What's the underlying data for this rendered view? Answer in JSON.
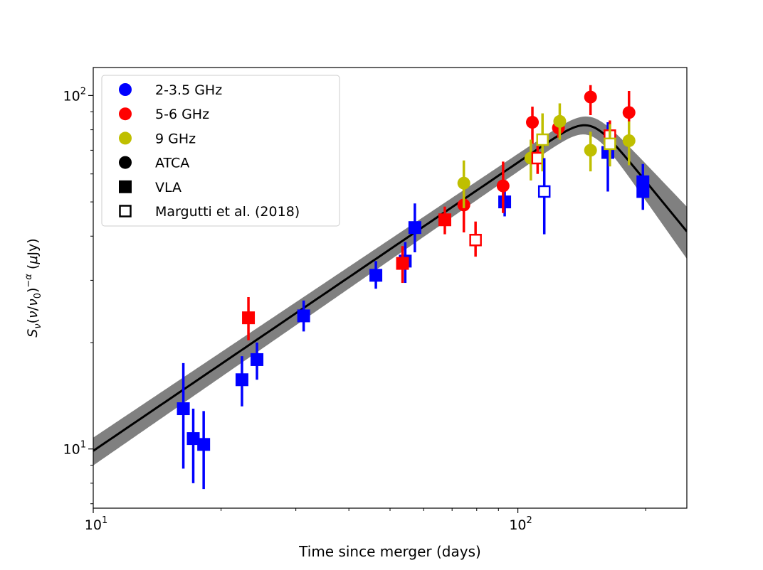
{
  "chart_data": {
    "type": "scatter",
    "xlabel": "Time since merger (days)",
    "ylabel": "S_ν(ν/ν₀)^−α (μJy)",
    "xscale": "log",
    "yscale": "log",
    "xlim": [
      10,
      250
    ],
    "ylim": [
      6.8,
      120
    ],
    "x_ticks": [
      {
        "value": 10,
        "base": "10",
        "exp": "1"
      },
      {
        "value": 100,
        "base": "10",
        "exp": "2"
      }
    ],
    "y_ticks": [
      {
        "value": 10,
        "base": "10",
        "exp": "1"
      },
      {
        "value": 100,
        "base": "10",
        "exp": "2"
      }
    ],
    "grid": false,
    "legend_position": "top-left",
    "colors": {
      "blue": "#0000ff",
      "red": "#ff0000",
      "olive": "#bfbf00",
      "model": "#000000",
      "band": "#808080"
    },
    "legend": [
      {
        "label": "2-3.5 GHz",
        "marker": "circle",
        "color": "#0000ff",
        "filled": true
      },
      {
        "label": "5-6 GHz",
        "marker": "circle",
        "color": "#ff0000",
        "filled": true
      },
      {
        "label": "9 GHz",
        "marker": "circle",
        "color": "#bfbf00",
        "filled": true
      },
      {
        "label": "ATCA",
        "marker": "circle",
        "color": "#000000",
        "filled": true
      },
      {
        "label": "VLA",
        "marker": "square",
        "color": "#000000",
        "filled": true
      },
      {
        "label": "Margutti et al. (2018)",
        "marker": "square",
        "color": "#000000",
        "filled": false
      }
    ],
    "model": {
      "x": [
        10,
        148,
        250
      ],
      "y": [
        9.1,
        82,
        38
      ],
      "band_low": [
        8.2,
        77,
        31.5
      ],
      "band_high": [
        10.0,
        87,
        45
      ],
      "smooth_peak": true
    },
    "series": [
      {
        "color": "blue",
        "marker": "square",
        "filled": true,
        "points": [
          {
            "x": 16.3,
            "y": 13.0,
            "lo": 8.8,
            "hi": 17.5
          },
          {
            "x": 17.2,
            "y": 10.7,
            "lo": 8.0,
            "hi": 13.0
          },
          {
            "x": 18.2,
            "y": 10.3,
            "lo": 7.7,
            "hi": 12.8
          },
          {
            "x": 22.4,
            "y": 15.7,
            "lo": 13.2,
            "hi": 18.3
          },
          {
            "x": 24.3,
            "y": 17.9,
            "lo": 15.7,
            "hi": 20.0
          },
          {
            "x": 31.3,
            "y": 23.8,
            "lo": 21.5,
            "hi": 26.3
          },
          {
            "x": 46.3,
            "y": 31.0,
            "lo": 28.4,
            "hi": 34.0
          },
          {
            "x": 54.3,
            "y": 34.0,
            "lo": 29.5,
            "hi": 38.5
          },
          {
            "x": 57.2,
            "y": 42.3,
            "lo": 36.0,
            "hi": 49.5
          },
          {
            "x": 93.1,
            "y": 50.0,
            "lo": 45.5,
            "hi": 54.5
          },
          {
            "x": 162.9,
            "y": 69.0,
            "lo": 53.5,
            "hi": 84.0
          },
          {
            "x": 197.0,
            "y": 57.0,
            "lo": 47.5,
            "hi": 64.0
          },
          {
            "x": 197.0,
            "y": 53.5,
            "lo": 47.5,
            "hi": 60.0
          }
        ]
      },
      {
        "color": "red",
        "marker": "square",
        "filled": true,
        "points": [
          {
            "x": 23.2,
            "y": 23.5,
            "lo": 20.3,
            "hi": 26.9
          },
          {
            "x": 53.5,
            "y": 33.5,
            "lo": 29.5,
            "hi": 37.5
          },
          {
            "x": 67.3,
            "y": 44.5,
            "lo": 40.5,
            "hi": 48.5
          }
        ]
      },
      {
        "color": "red",
        "marker": "circle",
        "filled": true,
        "points": [
          {
            "x": 74.6,
            "y": 49.0,
            "lo": 41.0,
            "hi": 58.0
          },
          {
            "x": 92.3,
            "y": 55.5,
            "lo": 46.5,
            "hi": 65.0
          },
          {
            "x": 108.2,
            "y": 84.0,
            "lo": 73.0,
            "hi": 93.0
          },
          {
            "x": 124.6,
            "y": 81.0,
            "lo": 76.0,
            "hi": 86.0
          },
          {
            "x": 148.3,
            "y": 99.0,
            "lo": 88.0,
            "hi": 107.0
          },
          {
            "x": 182.7,
            "y": 89.5,
            "lo": 75.5,
            "hi": 103.0
          }
        ]
      },
      {
        "color": "olive",
        "marker": "circle",
        "filled": true,
        "points": [
          {
            "x": 74.6,
            "y": 56.5,
            "lo": 48.0,
            "hi": 65.5
          },
          {
            "x": 107.3,
            "y": 66.5,
            "lo": 57.5,
            "hi": 75.0
          },
          {
            "x": 125.5,
            "y": 84.5,
            "lo": 75.0,
            "hi": 95.0
          },
          {
            "x": 148.3,
            "y": 70.0,
            "lo": 61.0,
            "hi": 79.0
          },
          {
            "x": 182.7,
            "y": 74.5,
            "lo": 63.5,
            "hi": 84.5
          }
        ]
      },
      {
        "color": "red",
        "marker": "square",
        "filled": false,
        "points": [
          {
            "x": 79.5,
            "y": 39.0,
            "lo": 35.0,
            "hi": 44.0
          },
          {
            "x": 111.3,
            "y": 66.5,
            "lo": 60.0,
            "hi": 73.0
          },
          {
            "x": 164.7,
            "y": 77.0,
            "lo": 69.0,
            "hi": 85.0
          }
        ]
      },
      {
        "color": "olive",
        "marker": "square",
        "filled": false,
        "points": [
          {
            "x": 114.3,
            "y": 75.0,
            "lo": 61.0,
            "hi": 89.0
          },
          {
            "x": 164.7,
            "y": 73.0,
            "lo": 63.0,
            "hi": 83.0
          }
        ]
      },
      {
        "color": "blue",
        "marker": "square",
        "filled": false,
        "points": [
          {
            "x": 115.4,
            "y": 53.5,
            "lo": 40.5,
            "hi": 66.5
          }
        ]
      }
    ]
  }
}
